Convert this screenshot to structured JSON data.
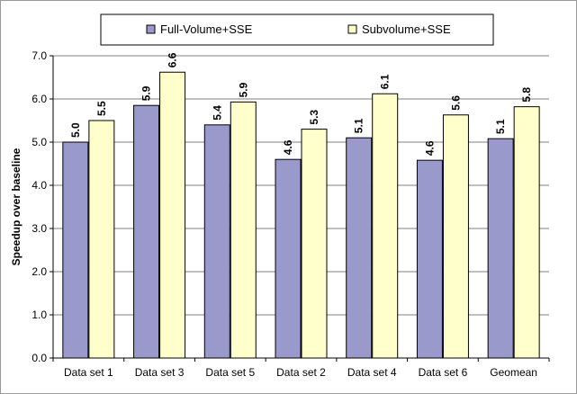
{
  "chart_data": {
    "type": "bar",
    "categories": [
      "Data set 1",
      "Data set 3",
      "Data set 5",
      "Data set 2",
      "Data set 4",
      "Data set 6",
      "Geomean"
    ],
    "series": [
      {
        "name": "Full-Volume+SSE",
        "color": "#9999cc",
        "values": [
          5.0,
          5.85,
          5.4,
          4.6,
          5.1,
          4.58,
          5.08
        ],
        "labels": [
          "5.0",
          "5.9",
          "5.4",
          "4.6",
          "5.1",
          "4.6",
          "5.1"
        ]
      },
      {
        "name": "Subvolume+SSE",
        "color": "#ffffcc",
        "values": [
          5.5,
          6.62,
          5.93,
          5.3,
          6.12,
          5.63,
          5.82
        ],
        "labels": [
          "5.5",
          "6.6",
          "5.9",
          "5.3",
          "6.1",
          "5.6",
          "5.8"
        ]
      }
    ],
    "ylabel": "Speedup over baseline",
    "xlabel": "",
    "ylim": [
      0,
      7
    ],
    "yticks": [
      "0.0",
      "1.0",
      "2.0",
      "3.0",
      "4.0",
      "5.0",
      "6.0",
      "7.0"
    ],
    "grid": true,
    "legend_position": "top",
    "plot_background": "#ffffff",
    "grid_color": "#7f7f7f"
  }
}
